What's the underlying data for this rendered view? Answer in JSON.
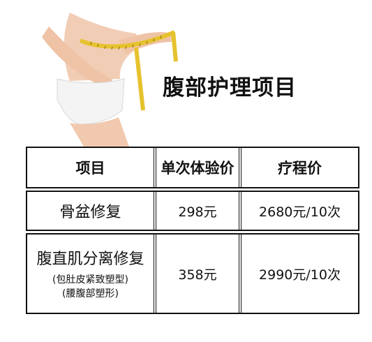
{
  "title": "腹部护理项目",
  "table": {
    "headers": [
      "项目",
      "单次体验价",
      "疗程价"
    ],
    "rows": [
      {
        "name": "骨盆修复",
        "notes": [],
        "single_price": "298元",
        "course_price": "2680元/10次"
      },
      {
        "name": "腹直肌分离修复",
        "notes": [
          "(包肚皮紧致塑型)",
          "(腰腹部塑形)"
        ],
        "single_price": "358元",
        "course_price": "2990元/10次"
      }
    ]
  },
  "hero_image": {
    "icon": "waist-tape-measure-photo"
  }
}
